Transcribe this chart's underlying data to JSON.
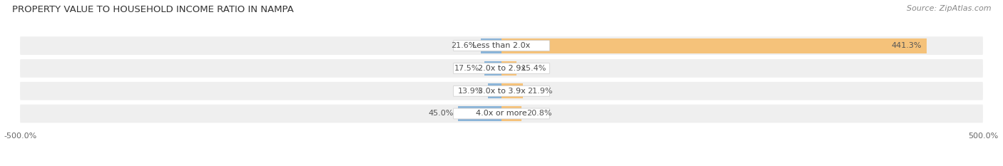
{
  "title": "PROPERTY VALUE TO HOUSEHOLD INCOME RATIO IN NAMPA",
  "source": "Source: ZipAtlas.com",
  "categories": [
    "Less than 2.0x",
    "2.0x to 2.9x",
    "3.0x to 3.9x",
    "4.0x or more"
  ],
  "without_mortgage": [
    21.6,
    17.5,
    13.9,
    45.0
  ],
  "with_mortgage": [
    441.3,
    15.4,
    21.9,
    20.8
  ],
  "color_without": "#8ab4d8",
  "color_with": "#f5c27a",
  "xlim": [
    -500,
    500
  ],
  "x_tick_vals": [
    -500,
    500
  ],
  "x_tick_labels": [
    "-500.0%",
    "500.0%"
  ],
  "bar_bg_color": "#efefef",
  "label_bg_color": "#ffffff",
  "title_fontsize": 9.5,
  "source_fontsize": 8,
  "label_fontsize": 8,
  "value_fontsize": 8,
  "cat_fontsize": 8
}
